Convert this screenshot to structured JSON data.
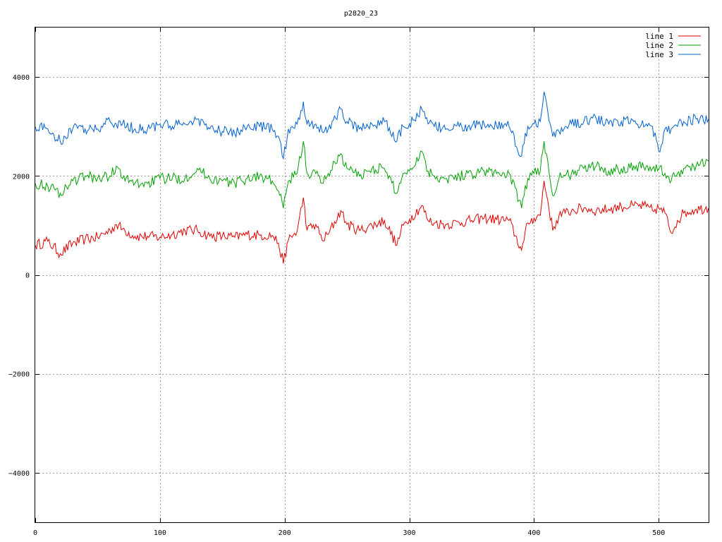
{
  "chart_data": {
    "type": "line",
    "title": "p2820_23",
    "xlabel": "",
    "ylabel": "",
    "xlim": [
      0,
      540
    ],
    "ylim": [
      -5000,
      5000
    ],
    "xticks": [
      0,
      100,
      200,
      300,
      400,
      500
    ],
    "yticks": [
      -4000,
      -2000,
      0,
      2000,
      4000
    ],
    "ytick_labels": [
      "−4000",
      "−2000",
      "0",
      "2000",
      "4000"
    ],
    "grid": true,
    "legend_position": "top-right",
    "series": [
      {
        "name": "line 1",
        "color": "#e00000",
        "points": [
          [
            0,
            600
          ],
          [
            10,
            680
          ],
          [
            20,
            430
          ],
          [
            30,
            640
          ],
          [
            40,
            720
          ],
          [
            50,
            760
          ],
          [
            60,
            900
          ],
          [
            65,
            1020
          ],
          [
            70,
            930
          ],
          [
            80,
            780
          ],
          [
            90,
            780
          ],
          [
            100,
            760
          ],
          [
            110,
            820
          ],
          [
            120,
            900
          ],
          [
            130,
            900
          ],
          [
            140,
            780
          ],
          [
            150,
            780
          ],
          [
            160,
            760
          ],
          [
            170,
            820
          ],
          [
            180,
            800
          ],
          [
            190,
            800
          ],
          [
            195,
            640
          ],
          [
            199,
            230
          ],
          [
            203,
            700
          ],
          [
            210,
            880
          ],
          [
            215,
            1560
          ],
          [
            218,
            900
          ],
          [
            225,
            1020
          ],
          [
            230,
            700
          ],
          [
            235,
            820
          ],
          [
            245,
            1300
          ],
          [
            250,
            1020
          ],
          [
            260,
            900
          ],
          [
            270,
            1000
          ],
          [
            280,
            1100
          ],
          [
            290,
            600
          ],
          [
            295,
            1000
          ],
          [
            300,
            1120
          ],
          [
            310,
            1400
          ],
          [
            315,
            1100
          ],
          [
            320,
            1050
          ],
          [
            330,
            1020
          ],
          [
            340,
            1060
          ],
          [
            350,
            1100
          ],
          [
            360,
            1150
          ],
          [
            370,
            1120
          ],
          [
            380,
            1100
          ],
          [
            390,
            500
          ],
          [
            392,
            700
          ],
          [
            395,
            1050
          ],
          [
            400,
            1150
          ],
          [
            405,
            1200
          ],
          [
            408,
            1900
          ],
          [
            411,
            1500
          ],
          [
            415,
            900
          ],
          [
            420,
            1200
          ],
          [
            425,
            1250
          ],
          [
            430,
            1300
          ],
          [
            440,
            1350
          ],
          [
            450,
            1300
          ],
          [
            460,
            1330
          ],
          [
            470,
            1380
          ],
          [
            480,
            1400
          ],
          [
            490,
            1380
          ],
          [
            495,
            1300
          ],
          [
            500,
            1350
          ],
          [
            505,
            1250
          ],
          [
            510,
            850
          ],
          [
            515,
            1100
          ],
          [
            520,
            1250
          ],
          [
            530,
            1330
          ],
          [
            540,
            1350
          ]
        ]
      },
      {
        "name": "line 2",
        "color": "#00a000",
        "points": [
          [
            0,
            1850
          ],
          [
            10,
            1800
          ],
          [
            20,
            1650
          ],
          [
            30,
            1900
          ],
          [
            40,
            2000
          ],
          [
            50,
            1950
          ],
          [
            60,
            2000
          ],
          [
            65,
            2200
          ],
          [
            70,
            1950
          ],
          [
            80,
            1850
          ],
          [
            90,
            1850
          ],
          [
            100,
            1950
          ],
          [
            110,
            1950
          ],
          [
            120,
            1950
          ],
          [
            130,
            2150
          ],
          [
            140,
            1950
          ],
          [
            150,
            1900
          ],
          [
            160,
            1850
          ],
          [
            170,
            1950
          ],
          [
            180,
            2000
          ],
          [
            190,
            1900
          ],
          [
            195,
            1700
          ],
          [
            199,
            1350
          ],
          [
            203,
            1900
          ],
          [
            210,
            2050
          ],
          [
            215,
            2700
          ],
          [
            218,
            2050
          ],
          [
            225,
            2050
          ],
          [
            230,
            1850
          ],
          [
            235,
            2050
          ],
          [
            245,
            2450
          ],
          [
            250,
            2150
          ],
          [
            260,
            2000
          ],
          [
            270,
            2150
          ],
          [
            280,
            2150
          ],
          [
            290,
            1650
          ],
          [
            295,
            2050
          ],
          [
            300,
            2100
          ],
          [
            310,
            2500
          ],
          [
            315,
            2100
          ],
          [
            320,
            2000
          ],
          [
            330,
            1950
          ],
          [
            340,
            2000
          ],
          [
            350,
            2050
          ],
          [
            360,
            2100
          ],
          [
            370,
            2050
          ],
          [
            380,
            2050
          ],
          [
            390,
            1350
          ],
          [
            392,
            1600
          ],
          [
            395,
            1950
          ],
          [
            400,
            2050
          ],
          [
            405,
            2100
          ],
          [
            408,
            2700
          ],
          [
            411,
            2300
          ],
          [
            415,
            1600
          ],
          [
            420,
            1950
          ],
          [
            425,
            2000
          ],
          [
            430,
            2050
          ],
          [
            440,
            2150
          ],
          [
            450,
            2200
          ],
          [
            460,
            2100
          ],
          [
            470,
            2150
          ],
          [
            480,
            2200
          ],
          [
            490,
            2200
          ],
          [
            495,
            2150
          ],
          [
            500,
            2150
          ],
          [
            505,
            2050
          ],
          [
            510,
            1900
          ],
          [
            515,
            2050
          ],
          [
            520,
            2150
          ],
          [
            530,
            2200
          ],
          [
            540,
            2300
          ]
        ]
      },
      {
        "name": "line 3",
        "color": "#0060d0",
        "points": [
          [
            0,
            3000
          ],
          [
            10,
            2950
          ],
          [
            20,
            2700
          ],
          [
            30,
            2950
          ],
          [
            40,
            2950
          ],
          [
            50,
            2950
          ],
          [
            60,
            3100
          ],
          [
            65,
            3050
          ],
          [
            70,
            3050
          ],
          [
            80,
            2950
          ],
          [
            90,
            2950
          ],
          [
            100,
            3050
          ],
          [
            110,
            3000
          ],
          [
            120,
            3050
          ],
          [
            130,
            3150
          ],
          [
            140,
            2950
          ],
          [
            150,
            2900
          ],
          [
            160,
            2850
          ],
          [
            170,
            3000
          ],
          [
            180,
            3000
          ],
          [
            190,
            2950
          ],
          [
            195,
            2800
          ],
          [
            199,
            2350
          ],
          [
            203,
            2950
          ],
          [
            210,
            3050
          ],
          [
            215,
            3500
          ],
          [
            218,
            3050
          ],
          [
            225,
            3050
          ],
          [
            230,
            2900
          ],
          [
            235,
            2950
          ],
          [
            245,
            3350
          ],
          [
            250,
            3100
          ],
          [
            260,
            2950
          ],
          [
            270,
            3050
          ],
          [
            280,
            3100
          ],
          [
            290,
            2700
          ],
          [
            295,
            3000
          ],
          [
            300,
            3050
          ],
          [
            310,
            3350
          ],
          [
            315,
            3050
          ],
          [
            320,
            3000
          ],
          [
            330,
            2950
          ],
          [
            340,
            3000
          ],
          [
            350,
            3000
          ],
          [
            360,
            3050
          ],
          [
            370,
            3000
          ],
          [
            380,
            3000
          ],
          [
            390,
            2400
          ],
          [
            392,
            2650
          ],
          [
            395,
            3000
          ],
          [
            400,
            3050
          ],
          [
            405,
            3100
          ],
          [
            408,
            3700
          ],
          [
            411,
            3300
          ],
          [
            415,
            2800
          ],
          [
            420,
            2900
          ],
          [
            425,
            3000
          ],
          [
            430,
            3050
          ],
          [
            440,
            3100
          ],
          [
            450,
            3150
          ],
          [
            460,
            3050
          ],
          [
            470,
            3100
          ],
          [
            480,
            3100
          ],
          [
            490,
            3050
          ],
          [
            495,
            3000
          ],
          [
            500,
            2500
          ],
          [
            505,
            2950
          ],
          [
            510,
            2950
          ],
          [
            515,
            3000
          ],
          [
            520,
            3100
          ],
          [
            530,
            3150
          ],
          [
            540,
            3150
          ]
        ]
      }
    ]
  }
}
